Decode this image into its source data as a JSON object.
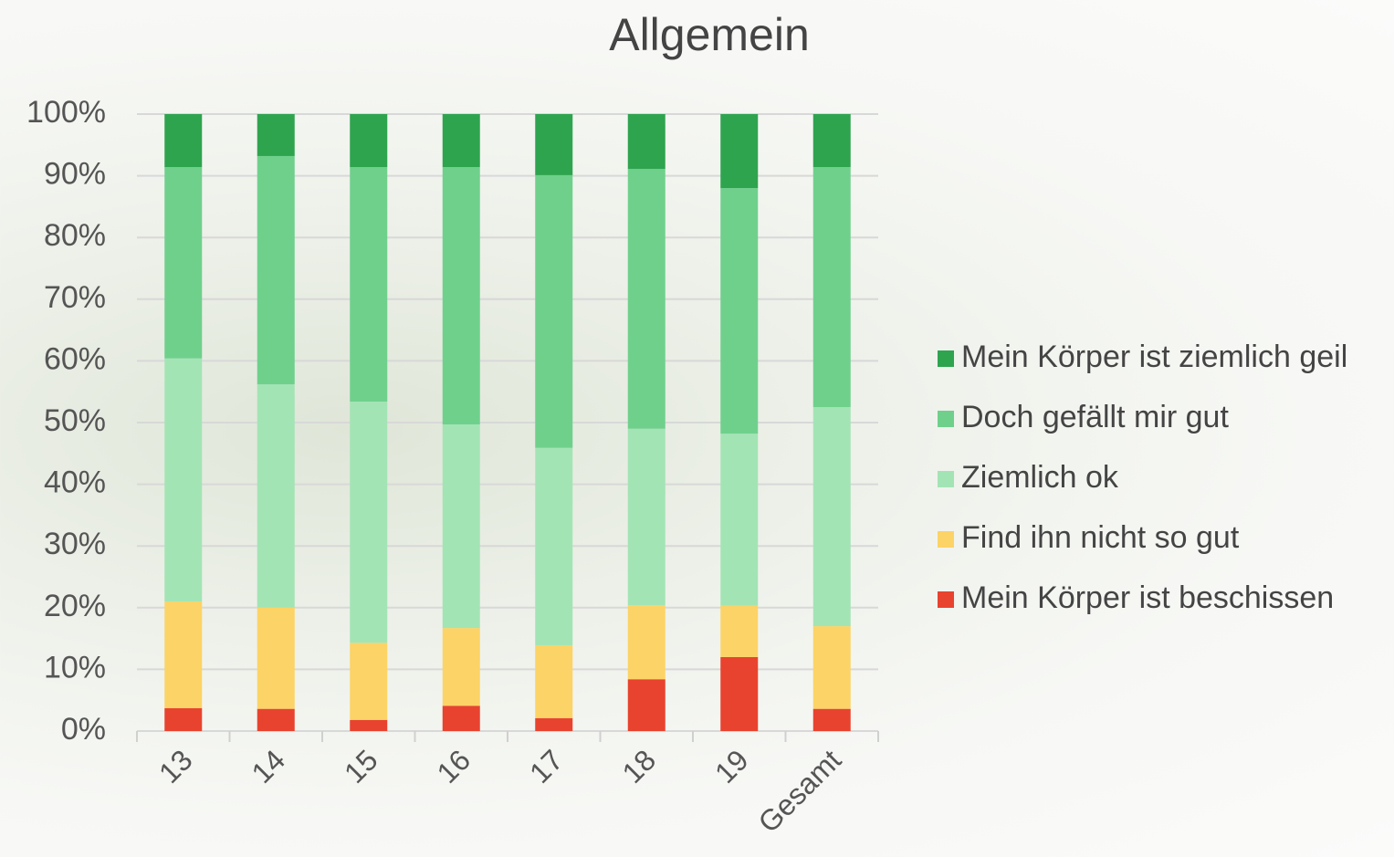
{
  "chart_data": {
    "type": "stacked_bar",
    "title": "Allgemein",
    "categories": [
      "13",
      "14",
      "15",
      "16",
      "17",
      "18",
      "19",
      "Gesamt"
    ],
    "series": [
      {
        "name": "Mein Körper ist beschissen",
        "color": "#e8432f",
        "values": [
          3.7,
          3.6,
          1.8,
          4.1,
          2.1,
          8.4,
          12.0,
          3.6
        ]
      },
      {
        "name": "Find ihn nicht so gut",
        "color": "#fcd366",
        "values": [
          17.3,
          16.4,
          12.5,
          12.6,
          11.8,
          12.0,
          8.3,
          13.4
        ]
      },
      {
        "name": "Ziemlich ok",
        "color": "#a3e4b5",
        "values": [
          39.4,
          36.2,
          39.1,
          33.0,
          32.0,
          28.6,
          27.9,
          35.5
        ]
      },
      {
        "name": "Doch gefällt mir gut",
        "color": "#6fd08c",
        "values": [
          31.0,
          37.0,
          38.0,
          41.7,
          44.2,
          42.1,
          39.8,
          38.9
        ]
      },
      {
        "name": "Mein Körper ist ziemlich geil",
        "color": "#2ea44f",
        "values": [
          8.6,
          6.8,
          8.6,
          8.6,
          9.9,
          8.9,
          12.0,
          8.6
        ]
      }
    ],
    "ylim": [
      0,
      100
    ],
    "yticks": [
      {
        "value": 0,
        "label": "0%"
      },
      {
        "value": 10,
        "label": "10%"
      },
      {
        "value": 20,
        "label": "20%"
      },
      {
        "value": 30,
        "label": "30%"
      },
      {
        "value": 40,
        "label": "40%"
      },
      {
        "value": 50,
        "label": "50%"
      },
      {
        "value": 60,
        "label": "60%"
      },
      {
        "value": 70,
        "label": "70%"
      },
      {
        "value": 80,
        "label": "80%"
      },
      {
        "value": 90,
        "label": "90%"
      },
      {
        "value": 100,
        "label": "100%"
      }
    ],
    "grid": true,
    "legend": "right"
  }
}
